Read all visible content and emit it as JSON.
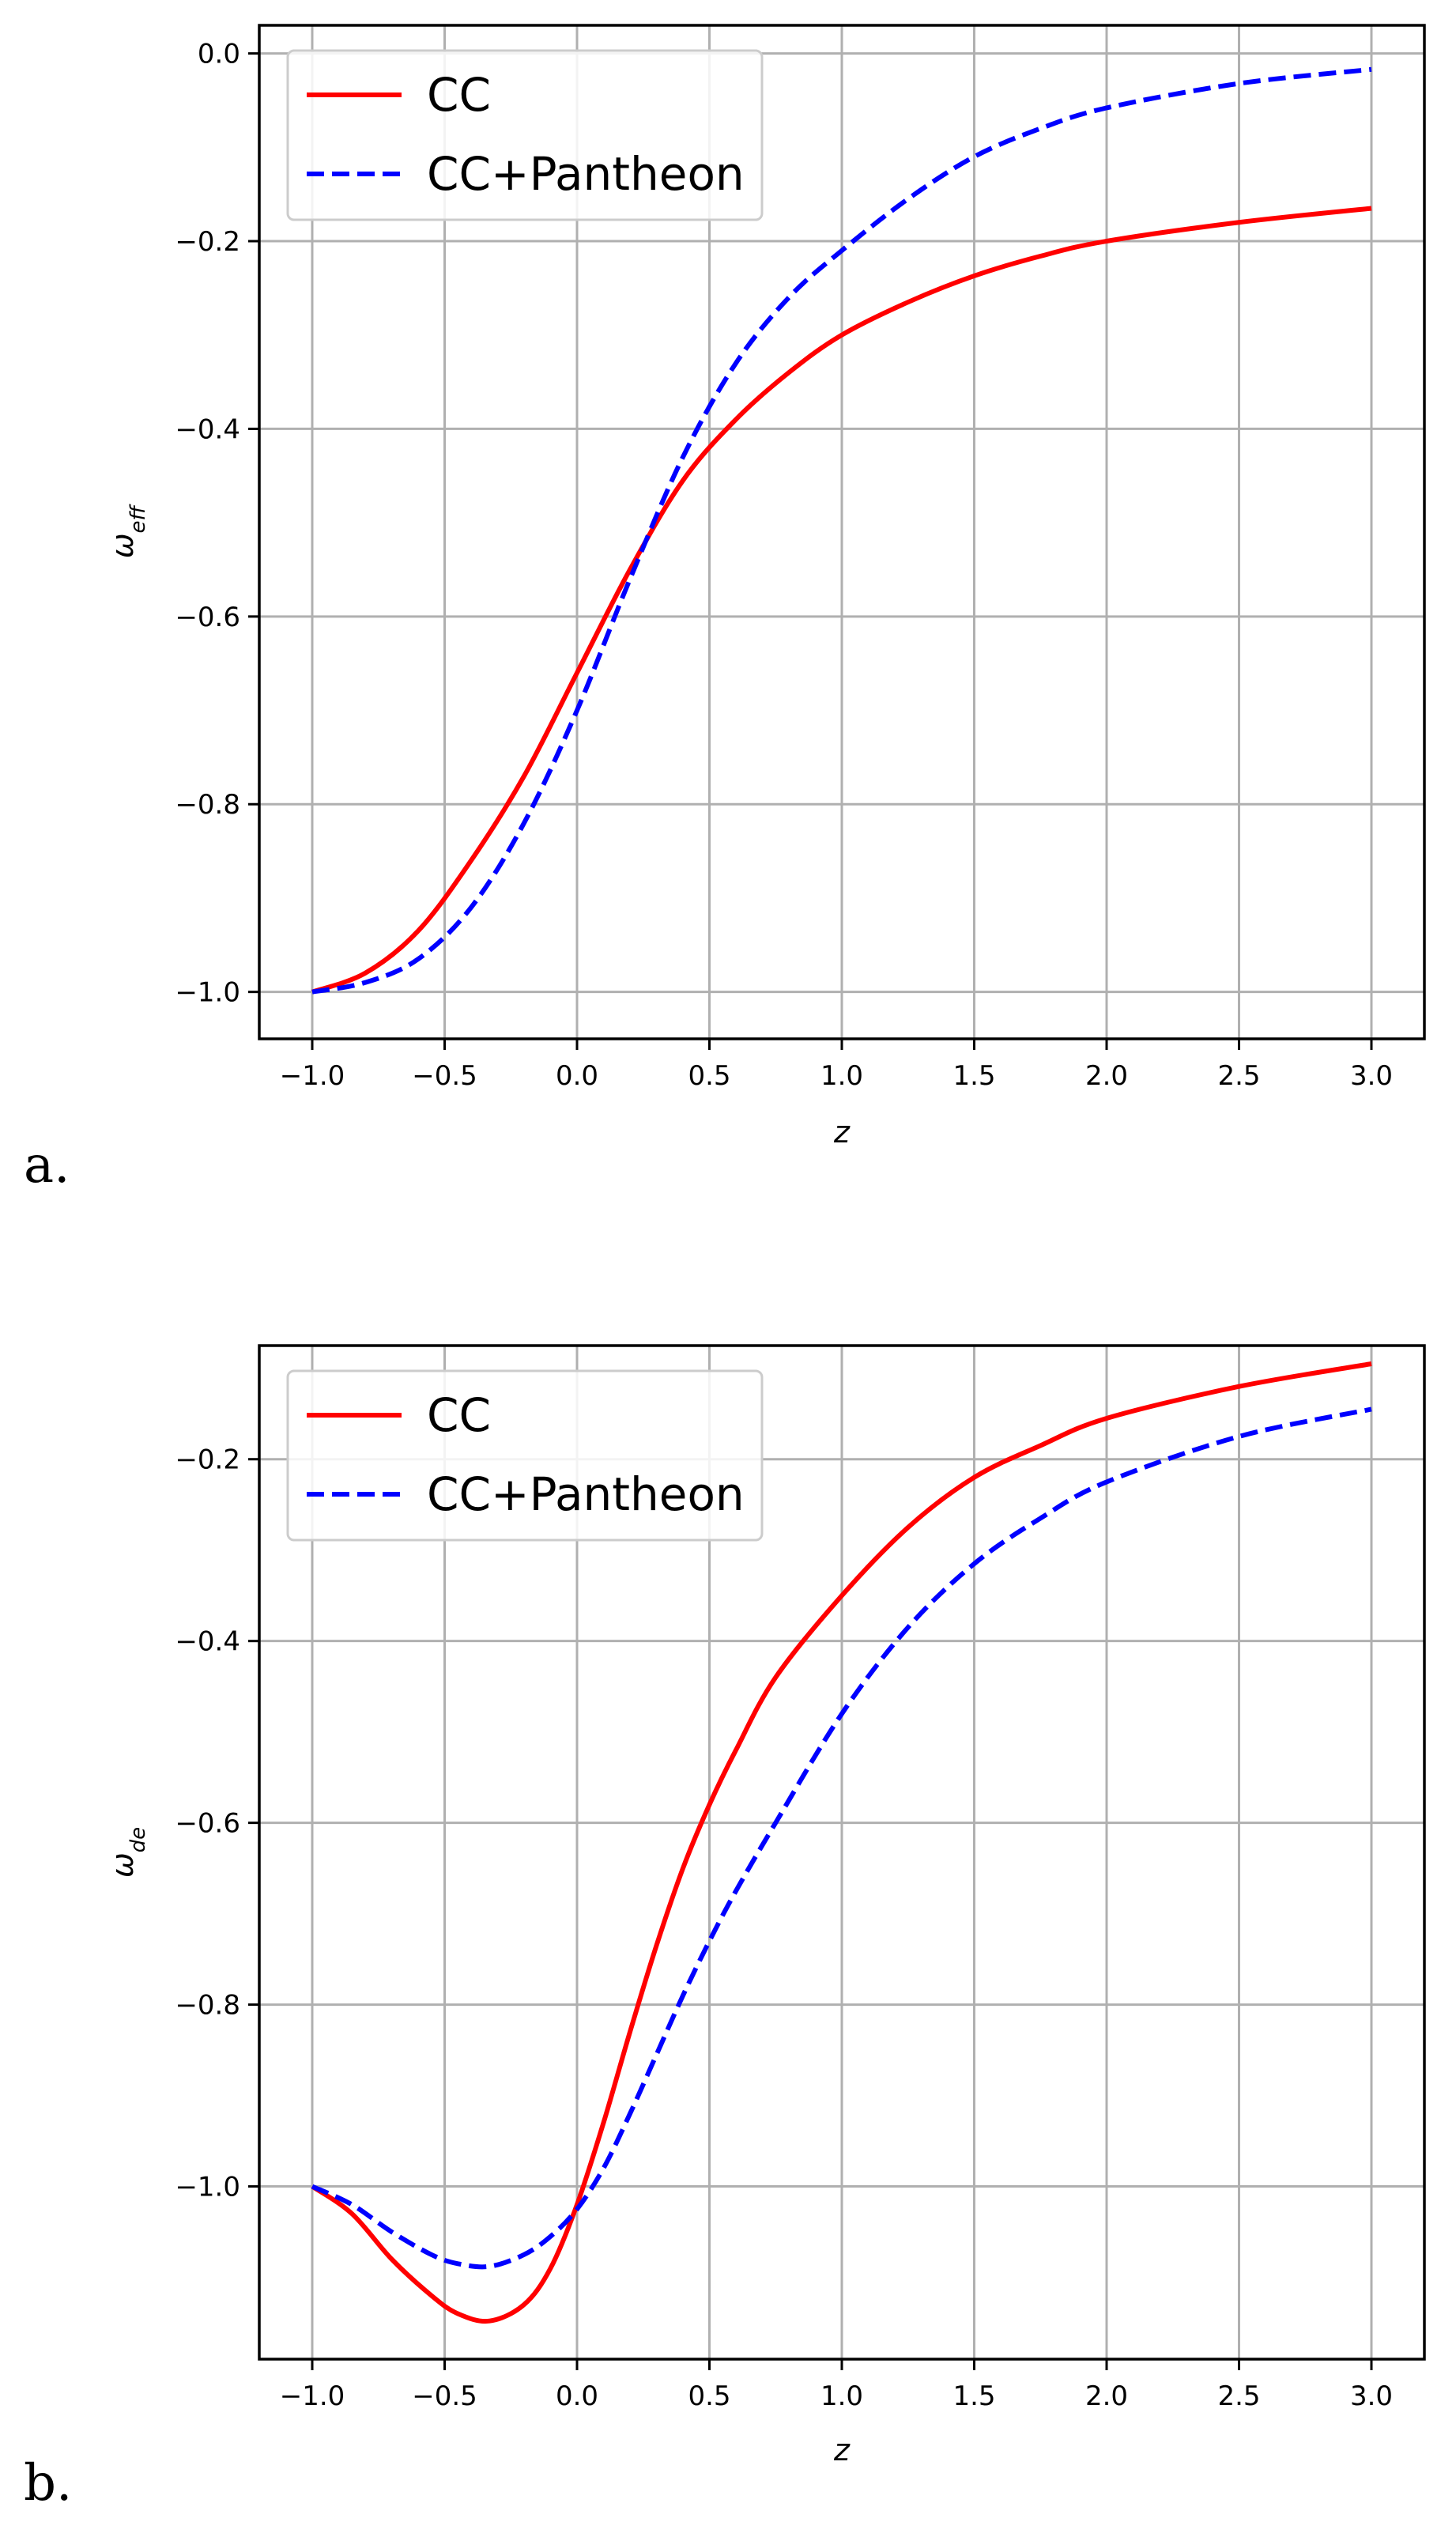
{
  "chart_data": [
    {
      "type": "line",
      "panel_label": "a.",
      "xlabel": "z",
      "ylabel_base": "ω",
      "ylabel_sub": "eff",
      "xlim": [
        -1.2,
        3.2
      ],
      "ylim": [
        -1.05,
        0.03
      ],
      "xticks": [
        -1.0,
        -0.5,
        0.0,
        0.5,
        1.0,
        1.5,
        2.0,
        2.5,
        3.0
      ],
      "xtick_labels": [
        "−1.0",
        "−0.5",
        "0.0",
        "0.5",
        "1.0",
        "1.5",
        "2.0",
        "2.5",
        "3.0"
      ],
      "yticks": [
        -1.0,
        -0.8,
        -0.6,
        -0.4,
        -0.2,
        0.0
      ],
      "ytick_labels": [
        "−1.0",
        "−0.8",
        "−0.6",
        "−0.4",
        "−0.2",
        "0.0"
      ],
      "grid": true,
      "legend_position": "upper-left",
      "series": [
        {
          "name": "CC",
          "color": "#ff0000",
          "style": "solid",
          "x": [
            -1.0,
            -0.8,
            -0.6,
            -0.4,
            -0.2,
            0.0,
            0.2,
            0.4,
            0.6,
            0.8,
            1.0,
            1.25,
            1.5,
            1.75,
            2.0,
            2.5,
            3.0
          ],
          "y": [
            -1.0,
            -0.98,
            -0.935,
            -0.86,
            -0.77,
            -0.66,
            -0.55,
            -0.455,
            -0.39,
            -0.34,
            -0.3,
            -0.265,
            -0.237,
            -0.216,
            -0.2,
            -0.18,
            -0.165
          ]
        },
        {
          "name": "CC+Pantheon",
          "color": "#0000ff",
          "style": "dashed",
          "x": [
            -1.0,
            -0.8,
            -0.6,
            -0.4,
            -0.2,
            0.0,
            0.2,
            0.4,
            0.6,
            0.8,
            1.0,
            1.25,
            1.5,
            1.75,
            2.0,
            2.5,
            3.0
          ],
          "y": [
            -1.0,
            -0.99,
            -0.965,
            -0.91,
            -0.82,
            -0.7,
            -0.56,
            -0.43,
            -0.33,
            -0.26,
            -0.21,
            -0.155,
            -0.11,
            -0.08,
            -0.058,
            -0.032,
            -0.017
          ]
        }
      ]
    },
    {
      "type": "line",
      "panel_label": "b.",
      "xlabel": "z",
      "ylabel_base": "ω",
      "ylabel_sub": "de",
      "xlim": [
        -1.2,
        3.2
      ],
      "ylim": [
        -1.19,
        -0.075
      ],
      "xticks": [
        -1.0,
        -0.5,
        0.0,
        0.5,
        1.0,
        1.5,
        2.0,
        2.5,
        3.0
      ],
      "xtick_labels": [
        "−1.0",
        "−0.5",
        "0.0",
        "0.5",
        "1.0",
        "1.5",
        "2.0",
        "2.5",
        "3.0"
      ],
      "yticks": [
        -1.0,
        -0.8,
        -0.6,
        -0.4,
        -0.2
      ],
      "ytick_labels": [
        "−1.0",
        "−0.8",
        "−0.6",
        "−0.4",
        "−0.2"
      ],
      "grid": true,
      "legend_position": "upper-left",
      "series": [
        {
          "name": "CC",
          "color": "#ff0000",
          "style": "solid",
          "x": [
            -1.0,
            -0.85,
            -0.7,
            -0.55,
            -0.45,
            -0.33,
            -0.2,
            -0.1,
            0.0,
            0.1,
            0.2,
            0.3,
            0.4,
            0.5,
            0.6,
            0.75,
            1.0,
            1.25,
            1.5,
            1.75,
            2.0,
            2.5,
            3.0
          ],
          "y": [
            -1.0,
            -1.03,
            -1.08,
            -1.12,
            -1.14,
            -1.148,
            -1.13,
            -1.09,
            -1.02,
            -0.93,
            -0.83,
            -0.735,
            -0.65,
            -0.58,
            -0.52,
            -0.44,
            -0.35,
            -0.275,
            -0.22,
            -0.185,
            -0.155,
            -0.12,
            -0.095
          ]
        },
        {
          "name": "CC+Pantheon",
          "color": "#0000ff",
          "style": "dashed",
          "x": [
            -1.0,
            -0.85,
            -0.7,
            -0.55,
            -0.45,
            -0.33,
            -0.2,
            -0.1,
            0.0,
            0.1,
            0.2,
            0.3,
            0.4,
            0.5,
            0.6,
            0.75,
            1.0,
            1.25,
            1.5,
            1.75,
            2.0,
            2.5,
            3.0
          ],
          "y": [
            -1.0,
            -1.02,
            -1.05,
            -1.075,
            -1.085,
            -1.088,
            -1.075,
            -1.055,
            -1.025,
            -0.98,
            -0.92,
            -0.855,
            -0.79,
            -0.73,
            -0.675,
            -0.6,
            -0.48,
            -0.385,
            -0.315,
            -0.265,
            -0.225,
            -0.175,
            -0.145
          ]
        }
      ]
    }
  ]
}
